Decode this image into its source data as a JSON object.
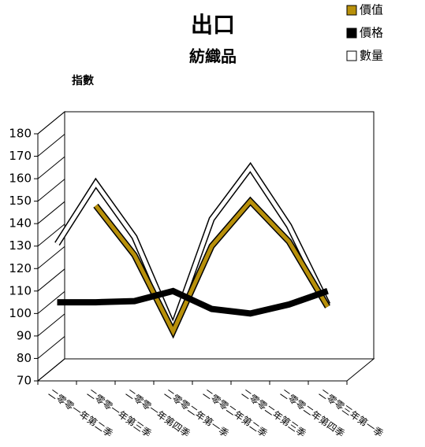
{
  "chart_data": {
    "type": "line3d",
    "title": "出口",
    "subtitle": "紡織品",
    "y_label": "指數",
    "categories": [
      "二零零一年第二季",
      "二零零一年第三季",
      "二零零一年第四季",
      "二零零二年第一季",
      "二零零二年第二季",
      "二零零二年第三季",
      "二零零二年第四季",
      "二零零三年第一季"
    ],
    "series": [
      {
        "name": "價值",
        "color": "#b8900a",
        "values": [
          null,
          148,
          126,
          92,
          130,
          150,
          132,
          103
        ]
      },
      {
        "name": "價格",
        "color": "#000000",
        "values": [
          105,
          105,
          105.5,
          110,
          102,
          100,
          104,
          110
        ]
      },
      {
        "name": "數量",
        "color": "#ffffff",
        "values": [
          131,
          158,
          134,
          94,
          142,
          165,
          139,
          104
        ]
      }
    ],
    "ylim": [
      70,
      180
    ],
    "yticks": [
      70,
      80,
      90,
      100,
      110,
      120,
      130,
      140,
      150,
      160,
      170,
      180
    ],
    "legend": "top-right"
  }
}
